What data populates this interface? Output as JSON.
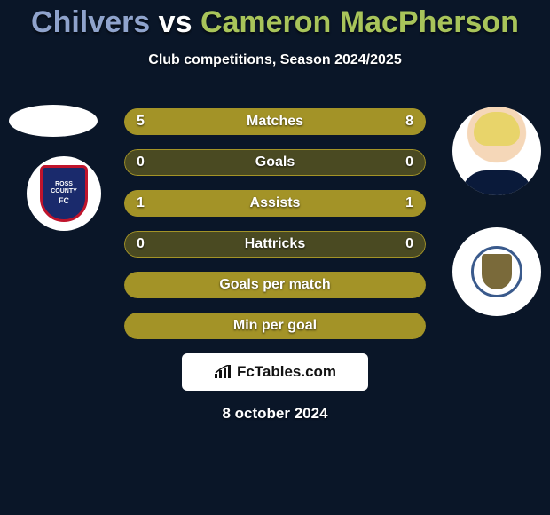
{
  "title": {
    "player1": "Chilvers",
    "vs": "vs",
    "player2": "Cameron MacPherson",
    "player1_color": "#8fa3cc",
    "player2_color": "#a8c45a"
  },
  "subtitle": "Club competitions, Season 2024/2025",
  "left_club": {
    "name": "ROSS COUNTY",
    "abbrev": "FC"
  },
  "right_club": {
    "name": "St Johnstone"
  },
  "stats": {
    "base_color": "#a39327",
    "label_font_size": 16,
    "value_font_size": 16,
    "rows": [
      {
        "label": "Matches",
        "left": "5",
        "right": "8",
        "left_fill_pct": 38.5,
        "right_fill_pct": 61.5
      },
      {
        "label": "Goals",
        "left": "0",
        "right": "0",
        "left_fill_pct": 0,
        "right_fill_pct": 0
      },
      {
        "label": "Assists",
        "left": "1",
        "right": "1",
        "left_fill_pct": 50,
        "right_fill_pct": 50
      },
      {
        "label": "Hattricks",
        "left": "0",
        "right": "0",
        "left_fill_pct": 0,
        "right_fill_pct": 0
      },
      {
        "label": "Goals per match",
        "left": "",
        "right": "",
        "left_fill_pct": 100,
        "right_fill_pct": 0,
        "full": true
      },
      {
        "label": "Min per goal",
        "left": "",
        "right": "",
        "left_fill_pct": 100,
        "right_fill_pct": 0,
        "full": true
      }
    ]
  },
  "footer": {
    "brand": "FcTables.com",
    "date": "8 october 2024"
  },
  "colors": {
    "background": "#0a1628",
    "text": "#ffffff",
    "white": "#ffffff"
  }
}
